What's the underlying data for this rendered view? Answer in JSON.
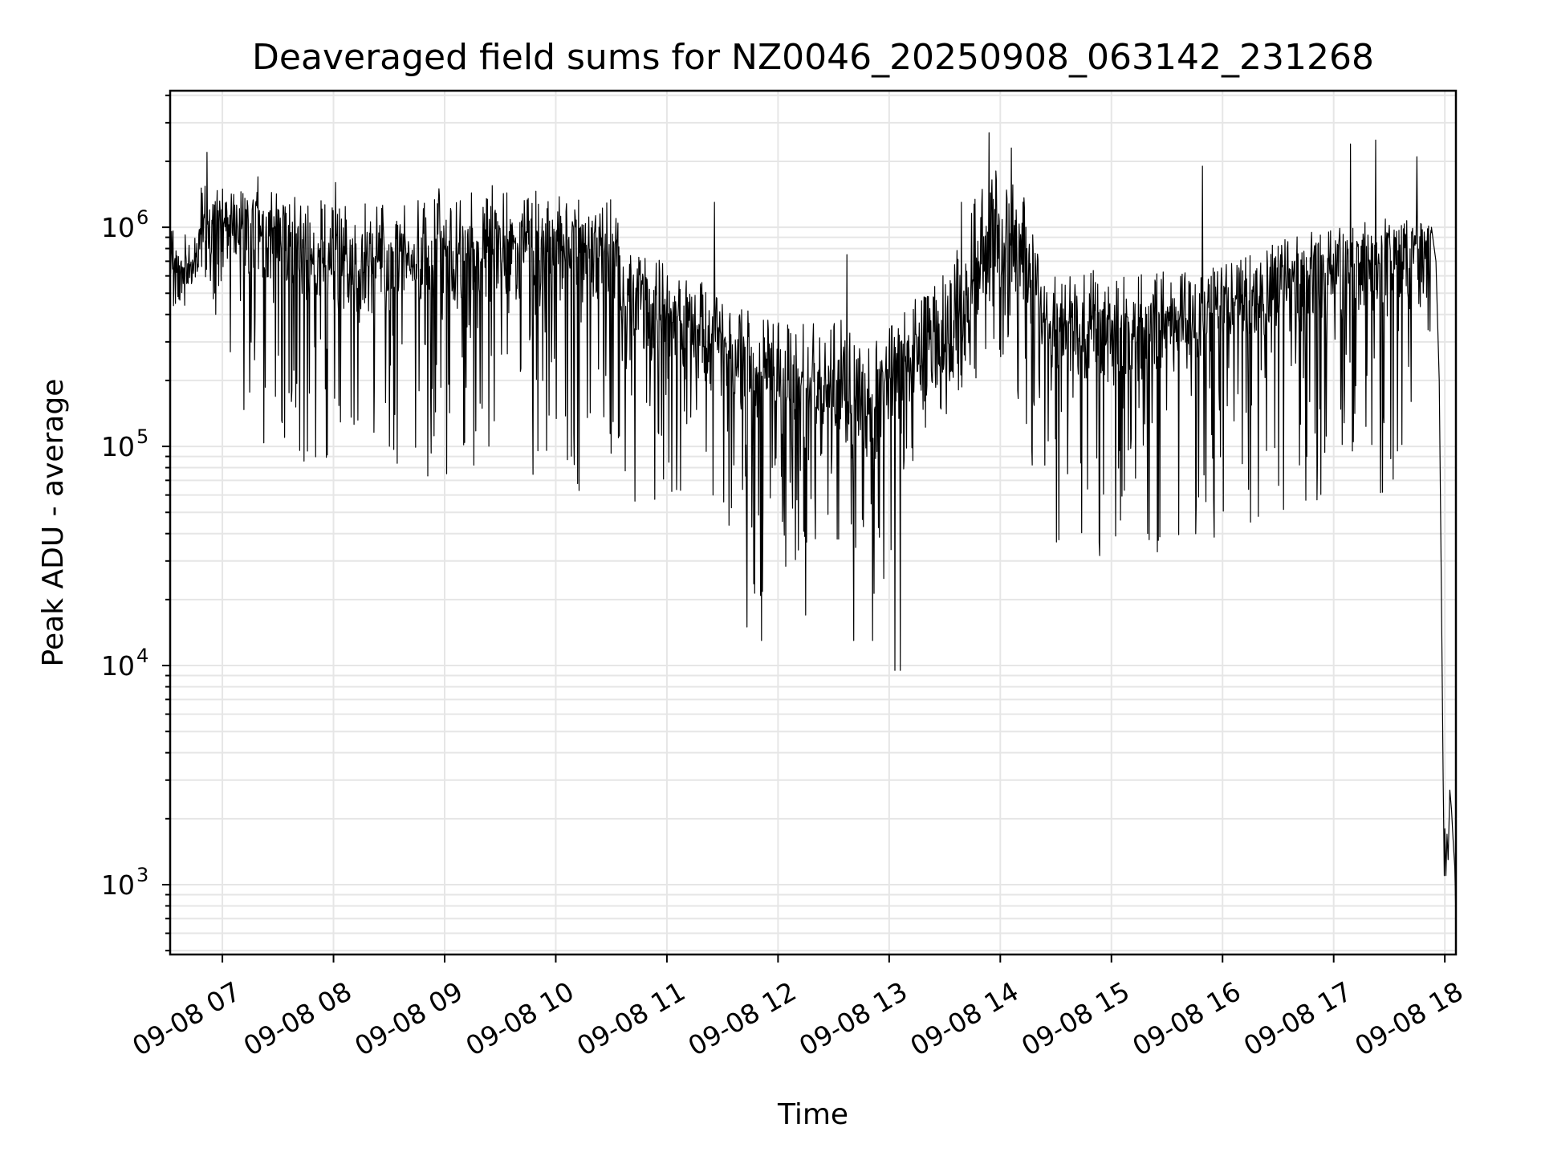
{
  "chart_data": {
    "type": "line",
    "title": "Deaveraged field sums for NZ0046_20250908_063142_231268",
    "xlabel": "Time",
    "ylabel": "Peak ADU - average",
    "x_unit": "hours of 2025-09-08",
    "xlim": [
      6.53,
      18.1
    ],
    "ylim": [
      480,
      4200000
    ],
    "yscale": "log",
    "grid": true,
    "legend": "none",
    "line_color": "#000000",
    "grid_color": "#e6e6e6",
    "x_ticks": [
      {
        "value": 7,
        "label": "09-08 07"
      },
      {
        "value": 8,
        "label": "09-08 08"
      },
      {
        "value": 9,
        "label": "09-08 09"
      },
      {
        "value": 10,
        "label": "09-08 10"
      },
      {
        "value": 11,
        "label": "09-08 11"
      },
      {
        "value": 12,
        "label": "09-08 12"
      },
      {
        "value": 13,
        "label": "09-08 13"
      },
      {
        "value": 14,
        "label": "09-08 14"
      },
      {
        "value": 15,
        "label": "09-08 15"
      },
      {
        "value": 16,
        "label": "09-08 16"
      },
      {
        "value": 17,
        "label": "09-08 17"
      },
      {
        "value": 18,
        "label": "09-08 18"
      }
    ],
    "y_ticks": [
      {
        "value": 1000,
        "base": "10",
        "exp": "3"
      },
      {
        "value": 10000,
        "base": "10",
        "exp": "4"
      },
      {
        "value": 100000,
        "base": "10",
        "exp": "5"
      },
      {
        "value": 1000000,
        "base": "10",
        "exp": "6"
      }
    ],
    "envelope": [
      {
        "t": 6.53,
        "base": 650000,
        "low": 550000,
        "high": 800000
      },
      {
        "t": 6.75,
        "base": 620000,
        "low": 520000,
        "high": 760000
      },
      {
        "t": 6.8,
        "base": 1050000,
        "low": 700000,
        "high": 1200000
      },
      {
        "t": 7.0,
        "base": 1000000,
        "low": 300000,
        "high": 1400000
      },
      {
        "t": 7.3,
        "base": 900000,
        "low": 80000,
        "high": 1500000
      },
      {
        "t": 8.0,
        "base": 600000,
        "low": 85000,
        "high": 1300000
      },
      {
        "t": 9.0,
        "base": 650000,
        "low": 70000,
        "high": 1400000
      },
      {
        "t": 9.6,
        "base": 750000,
        "low": 60000,
        "high": 1500000
      },
      {
        "t": 10.5,
        "base": 700000,
        "low": 60000,
        "high": 1400000
      },
      {
        "t": 10.65,
        "base": 450000,
        "low": 45000,
        "high": 750000
      },
      {
        "t": 11.0,
        "base": 350000,
        "low": 60000,
        "high": 700000
      },
      {
        "t": 11.5,
        "base": 250000,
        "low": 50000,
        "high": 500000
      },
      {
        "t": 11.8,
        "base": 200000,
        "low": 20000,
        "high": 400000
      },
      {
        "t": 12.5,
        "base": 180000,
        "low": 40000,
        "high": 400000
      },
      {
        "t": 12.85,
        "base": 120000,
        "low": 15000,
        "high": 300000
      },
      {
        "t": 13.2,
        "base": 250000,
        "low": 80000,
        "high": 450000
      },
      {
        "t": 13.6,
        "base": 300000,
        "low": 150000,
        "high": 800000
      },
      {
        "t": 13.9,
        "base": 800000,
        "low": 250000,
        "high": 2000000
      },
      {
        "t": 14.2,
        "base": 700000,
        "low": 150000,
        "high": 1500000
      },
      {
        "t": 14.4,
        "base": 350000,
        "low": 35000,
        "high": 600000
      },
      {
        "t": 15.0,
        "base": 280000,
        "low": 30000,
        "high": 650000
      },
      {
        "t": 15.8,
        "base": 350000,
        "low": 30000,
        "high": 650000
      },
      {
        "t": 16.5,
        "base": 500000,
        "low": 45000,
        "high": 900000
      },
      {
        "t": 17.0,
        "base": 600000,
        "low": 55000,
        "high": 1000000
      },
      {
        "t": 17.5,
        "base": 650000,
        "low": 60000,
        "high": 1100000
      },
      {
        "t": 17.85,
        "base": 850000,
        "low": 300000,
        "high": 1050000
      }
    ],
    "spikes": [
      {
        "t": 6.86,
        "value": 2200000
      },
      {
        "t": 7.32,
        "value": 1700000
      },
      {
        "t": 8.02,
        "value": 1600000
      },
      {
        "t": 8.95,
        "value": 1500000
      },
      {
        "t": 9.43,
        "value": 1550000
      },
      {
        "t": 11.43,
        "value": 1300000
      },
      {
        "t": 12.62,
        "value": 750000
      },
      {
        "t": 13.1,
        "value": 9500
      },
      {
        "t": 13.65,
        "value": 1300000
      },
      {
        "t": 13.9,
        "value": 2700000
      },
      {
        "t": 14.1,
        "value": 2300000
      },
      {
        "t": 15.82,
        "value": 1900000
      },
      {
        "t": 17.15,
        "value": 2400000
      },
      {
        "t": 17.38,
        "value": 2500000
      },
      {
        "t": 17.75,
        "value": 2100000
      }
    ],
    "dips": [
      {
        "t": 11.72,
        "value": 15000
      },
      {
        "t": 11.85,
        "value": 13000
      },
      {
        "t": 12.25,
        "value": 17000
      },
      {
        "t": 12.68,
        "value": 13000
      },
      {
        "t": 12.85,
        "value": 13000
      },
      {
        "t": 13.05,
        "value": 9500
      }
    ],
    "tail": [
      {
        "t": 17.88,
        "value": 1000000
      },
      {
        "t": 17.92,
        "value": 700000
      },
      {
        "t": 17.95,
        "value": 200000
      },
      {
        "t": 17.97,
        "value": 20000
      },
      {
        "t": 17.985,
        "value": 3000
      },
      {
        "t": 17.995,
        "value": 1100
      },
      {
        "t": 18.0,
        "value": 1800
      },
      {
        "t": 18.01,
        "value": 1100
      },
      {
        "t": 18.02,
        "value": 1700
      },
      {
        "t": 18.03,
        "value": 1300
      },
      {
        "t": 18.045,
        "value": 2700
      },
      {
        "t": 18.06,
        "value": 2200
      },
      {
        "t": 18.075,
        "value": 1600
      },
      {
        "t": 18.09,
        "value": 1200
      },
      {
        "t": 18.1,
        "value": 700
      }
    ]
  }
}
